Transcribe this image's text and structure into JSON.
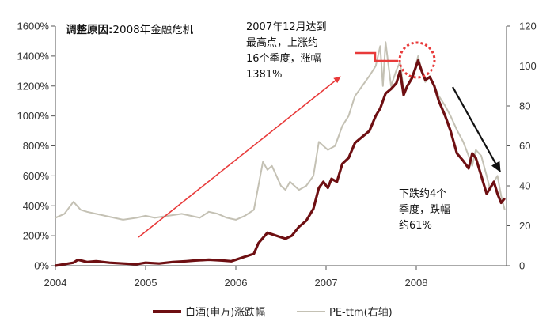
{
  "chart_data": {
    "type": "line",
    "title": "调整原因:",
    "subtitle": "2008年金融危机",
    "xlabel": "",
    "ylabel_left": "",
    "ylabel_right": "",
    "x_ticks": [
      "2004",
      "2005",
      "2006",
      "2007",
      "2008"
    ],
    "x_range": [
      2004.0,
      2009.0
    ],
    "y_left_ticks": [
      "0%",
      "200%",
      "400%",
      "600%",
      "800%",
      "1000%",
      "1200%",
      "1400%",
      "1600%"
    ],
    "y_left_range": [
      0,
      1600
    ],
    "y_right_ticks": [
      "0",
      "20",
      "40",
      "60",
      "80",
      "100",
      "120"
    ],
    "y_right_range": [
      0,
      120
    ],
    "grid": false,
    "series": [
      {
        "name": "白酒(申万)涨跌幅",
        "axis": "left",
        "color": "#6e0f12",
        "x": [
          2004.0,
          2004.1,
          2004.2,
          2004.25,
          2004.35,
          2004.45,
          2004.6,
          2004.75,
          2004.9,
          2005.0,
          2005.15,
          2005.3,
          2005.45,
          2005.55,
          2005.7,
          2005.85,
          2005.95,
          2006.1,
          2006.2,
          2006.25,
          2006.35,
          2006.45,
          2006.55,
          2006.62,
          2006.7,
          2006.78,
          2006.86,
          2006.92,
          2006.97,
          2007.02,
          2007.06,
          2007.12,
          2007.18,
          2007.25,
          2007.32,
          2007.4,
          2007.48,
          2007.55,
          2007.6,
          2007.66,
          2007.72,
          2007.78,
          2007.82,
          2007.86,
          2007.9,
          2007.95,
          2007.98,
          2008.02,
          2008.06,
          2008.1,
          2008.15,
          2008.2,
          2008.25,
          2008.32,
          2008.38,
          2008.45,
          2008.52,
          2008.58,
          2008.62,
          2008.66,
          2008.72,
          2008.78,
          2008.82,
          2008.86,
          2008.9,
          2008.94,
          2008.98
        ],
        "values": [
          0,
          10,
          20,
          40,
          25,
          30,
          20,
          15,
          10,
          20,
          15,
          25,
          30,
          35,
          40,
          35,
          30,
          60,
          80,
          150,
          220,
          200,
          180,
          200,
          260,
          300,
          380,
          520,
          560,
          520,
          580,
          560,
          680,
          720,
          820,
          860,
          900,
          1000,
          1050,
          1150,
          1180,
          1220,
          1300,
          1140,
          1200,
          1250,
          1300,
          1370,
          1300,
          1240,
          1260,
          1200,
          1100,
          1000,
          900,
          750,
          700,
          650,
          750,
          720,
          600,
          480,
          520,
          560,
          480,
          420,
          450
        ]
      },
      {
        "name": "PE-ttm(右轴)",
        "axis": "right",
        "color": "#c4c1b4",
        "x": [
          2004.0,
          2004.1,
          2004.2,
          2004.28,
          2004.35,
          2004.45,
          2004.55,
          2004.65,
          2004.75,
          2004.9,
          2005.0,
          2005.1,
          2005.25,
          2005.4,
          2005.5,
          2005.6,
          2005.7,
          2005.8,
          2005.9,
          2006.0,
          2006.1,
          2006.2,
          2006.25,
          2006.3,
          2006.35,
          2006.4,
          2006.45,
          2006.5,
          2006.55,
          2006.6,
          2006.65,
          2006.7,
          2006.78,
          2006.86,
          2006.92,
          2006.97,
          2007.02,
          2007.1,
          2007.18,
          2007.25,
          2007.32,
          2007.4,
          2007.48,
          2007.55,
          2007.6,
          2007.63,
          2007.66,
          2007.72,
          2007.78,
          2007.82,
          2007.86,
          2007.9,
          2007.95,
          2007.98,
          2008.02,
          2008.06,
          2008.1,
          2008.15,
          2008.2,
          2008.25,
          2008.32,
          2008.38,
          2008.45,
          2008.52,
          2008.58,
          2008.62,
          2008.66,
          2008.72,
          2008.78,
          2008.82,
          2008.86,
          2008.9,
          2008.94,
          2008.98
        ],
        "values": [
          24,
          26,
          32,
          28,
          27,
          26,
          25,
          24,
          23,
          24,
          25,
          24,
          25,
          26,
          25,
          24,
          27,
          26,
          24,
          23,
          25,
          28,
          40,
          52,
          48,
          50,
          45,
          40,
          38,
          42,
          40,
          38,
          40,
          45,
          62,
          60,
          58,
          60,
          70,
          75,
          85,
          90,
          95,
          100,
          110,
          90,
          112,
          90,
          98,
          102,
          88,
          90,
          95,
          98,
          105,
          98,
          92,
          95,
          90,
          85,
          80,
          75,
          68,
          62,
          55,
          50,
          58,
          55,
          45,
          38,
          42,
          45,
          35,
          28
        ]
      }
    ],
    "annotations": [
      {
        "lines": [
          "2007年12月达到",
          "最高点，上涨约",
          "16个季度，涨幅",
          "1381%"
        ]
      },
      {
        "lines": [
          "下跌约4个",
          "季度，跌幅",
          "约61%"
        ]
      }
    ],
    "colors": {
      "arrow_up": "#e83a3a",
      "arrow_down": "#111111",
      "peak_marker": "#e83a3a",
      "axis": "#555555"
    }
  }
}
